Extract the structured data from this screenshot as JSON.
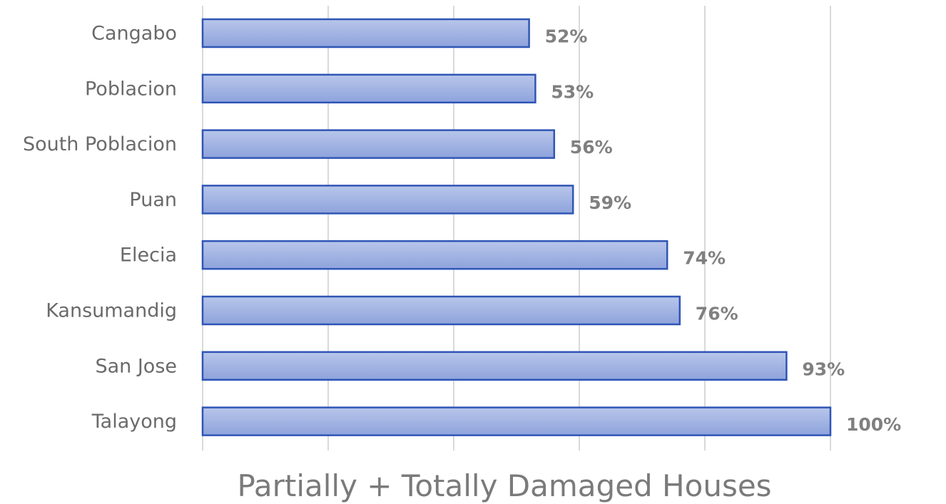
{
  "chart_data": {
    "type": "bar",
    "orientation": "horizontal",
    "categories": [
      "Cangabo",
      "Poblacion",
      "South Poblacion",
      "Puan",
      "Elecia",
      "Kansumandig",
      "San Jose",
      "Talayong"
    ],
    "values": [
      52,
      53,
      56,
      59,
      74,
      76,
      93,
      100
    ],
    "value_labels": [
      "52%",
      "53%",
      "56%",
      "59%",
      "74%",
      "76%",
      "93%",
      "100%"
    ],
    "title": "",
    "xlabel": "Partially + Totally Damaged Houses",
    "ylabel": "",
    "xlim": [
      0,
      100
    ],
    "grid": true,
    "legend": "none",
    "colors": {
      "bar_top": "#b8c6ea",
      "bar_bottom": "#8ea3dc",
      "bar_stroke": "#2f55b5",
      "grid": "#d9d9d9"
    }
  }
}
